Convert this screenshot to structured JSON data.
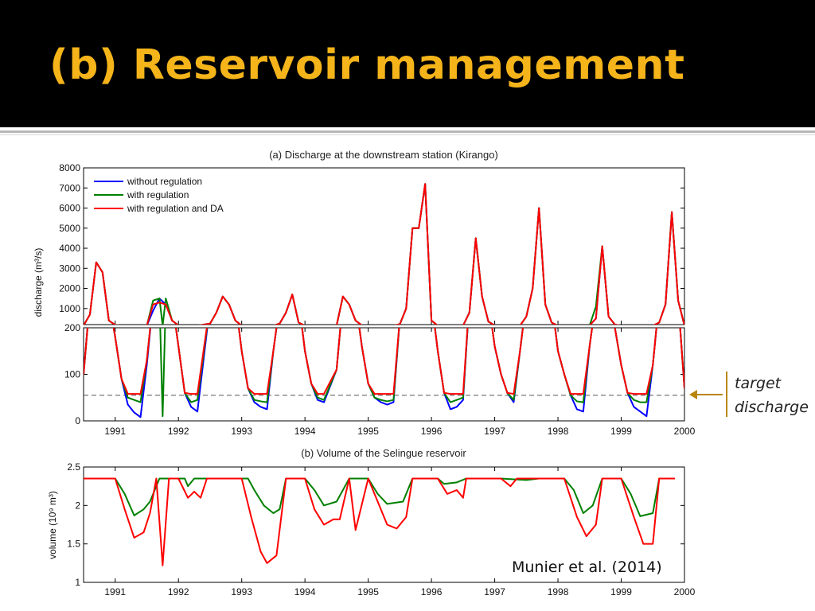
{
  "slide": {
    "title": "(b) Reservoir management",
    "annotation_line1": "target",
    "annotation_line2": "discharge",
    "citation": "Munier et al. (2014)"
  },
  "colors": {
    "title_bar": "#000000",
    "title_text": "#F4B41A",
    "without_regulation": "#0000FF",
    "with_regulation": "#008000",
    "with_regulation_da": "#FF0000",
    "arrow": "#B8860B"
  },
  "chart_data": [
    {
      "type": "line",
      "title": "(a) Discharge at the downstream station (Kirango)",
      "ylabel": "discharge (m³/s)",
      "panels": [
        {
          "ylim": [
            200,
            8000
          ],
          "yticks": [
            "8000",
            "7000",
            "6000",
            "5000",
            "4000",
            "3000",
            "2000",
            "1000"
          ]
        },
        {
          "ylim": [
            0,
            200
          ],
          "yticks": [
            "200",
            "100",
            "0"
          ]
        }
      ],
      "xlim": [
        1990.5,
        2000.0
      ],
      "xticks": [
        "1991",
        "1992",
        "1993",
        "1994",
        "1995",
        "1996",
        "1997",
        "1998",
        "1999",
        "2000"
      ],
      "target_discharge": 55,
      "legend": {
        "position": "top-left",
        "entries": [
          "without regulation",
          "with regulation",
          "with regulation and DA"
        ]
      },
      "series": [
        {
          "name": "without regulation",
          "color": "#0000FF",
          "x": [
            1990.5,
            1990.6,
            1990.7,
            1990.8,
            1990.9,
            1991.0,
            1991.1,
            1991.2,
            1991.3,
            1991.4,
            1991.5,
            1991.6,
            1991.7,
            1991.8,
            1991.9,
            1992.0,
            1992.1,
            1992.2,
            1992.3,
            1992.5,
            1992.6,
            1992.7,
            1992.8,
            1992.9,
            1993.0,
            1993.1,
            1993.2,
            1993.3,
            1993.4,
            1993.5,
            1993.6,
            1993.7,
            1993.8,
            1993.9,
            1994.0,
            1994.1,
            1994.2,
            1994.3,
            1994.5,
            1994.6,
            1994.7,
            1994.8,
            1994.9,
            1995.0,
            1995.1,
            1995.2,
            1995.3,
            1995.4,
            1995.5,
            1995.6,
            1995.7,
            1995.8,
            1995.9,
            1996.0,
            1996.1,
            1996.2,
            1996.3,
            1996.4,
            1996.5,
            1996.6,
            1996.7,
            1996.8,
            1996.9,
            1997.0,
            1997.1,
            1997.2,
            1997.3,
            1997.4,
            1997.5,
            1997.6,
            1997.7,
            1997.8,
            1997.9,
            1998.0,
            1998.1,
            1998.2,
            1998.3,
            1998.4,
            1998.5,
            1998.6,
            1998.7,
            1998.8,
            1998.9,
            1999.0,
            1999.1,
            1999.2,
            1999.3,
            1999.4,
            1999.5,
            1999.6,
            1999.7,
            1999.8,
            1999.9,
            2000.0
          ],
          "y": [
            100,
            700,
            3300,
            2800,
            400,
            180,
            90,
            35,
            18,
            8,
            120,
            900,
            1500,
            1200,
            400,
            160,
            60,
            30,
            20,
            250,
            800,
            1600,
            1200,
            400,
            150,
            70,
            40,
            30,
            25,
            150,
            250,
            800,
            1700,
            300,
            150,
            80,
            45,
            40,
            110,
            1600,
            1200,
            400,
            160,
            80,
            50,
            40,
            35,
            40,
            220,
            1000,
            5000,
            5000,
            7200,
            400,
            150,
            60,
            25,
            30,
            45,
            800,
            4500,
            1600,
            350,
            160,
            100,
            60,
            40,
            150,
            600,
            2000,
            6000,
            1200,
            300,
            150,
            100,
            55,
            25,
            20,
            160,
            500,
            4100,
            600,
            200,
            120,
            60,
            30,
            20,
            10,
            120,
            300,
            1200,
            5800,
            1400,
            70
          ]
        },
        {
          "name": "with regulation",
          "color": "#008000",
          "x": [
            1990.5,
            1990.6,
            1990.7,
            1990.8,
            1990.9,
            1991.0,
            1991.1,
            1991.2,
            1991.3,
            1991.4,
            1991.5,
            1991.6,
            1991.7,
            1991.75,
            1991.8,
            1991.9,
            1992.0,
            1992.1,
            1992.2,
            1992.3,
            1992.5,
            1992.6,
            1992.7,
            1992.8,
            1992.9,
            1993.0,
            1993.1,
            1993.2,
            1993.3,
            1993.4,
            1993.5,
            1993.6,
            1993.7,
            1993.8,
            1993.9,
            1994.0,
            1994.1,
            1994.2,
            1994.3,
            1994.5,
            1994.6,
            1994.7,
            1994.8,
            1994.9,
            1995.0,
            1995.1,
            1995.2,
            1995.3,
            1995.4,
            1995.5,
            1995.6,
            1995.7,
            1995.8,
            1995.9,
            1996.0,
            1996.1,
            1996.2,
            1996.3,
            1996.4,
            1996.5,
            1996.6,
            1996.7,
            1996.8,
            1996.9,
            1997.0,
            1997.1,
            1997.2,
            1997.3,
            1997.4,
            1997.5,
            1997.6,
            1997.7,
            1997.8,
            1997.9,
            1998.0,
            1998.1,
            1998.2,
            1998.3,
            1998.4,
            1998.5,
            1998.6,
            1998.7,
            1998.8,
            1998.9,
            1999.0,
            1999.1,
            1999.2,
            1999.3,
            1999.4,
            1999.5,
            1999.6,
            1999.7,
            1999.8,
            1999.9,
            2000.0
          ],
          "y": [
            100,
            700,
            3300,
            2800,
            400,
            180,
            90,
            50,
            45,
            40,
            130,
            1400,
            1500,
            10,
            1500,
            400,
            160,
            60,
            40,
            45,
            250,
            800,
            1600,
            1200,
            400,
            150,
            70,
            45,
            42,
            40,
            150,
            250,
            800,
            1700,
            300,
            150,
            80,
            50,
            45,
            110,
            1600,
            1200,
            400,
            160,
            80,
            50,
            45,
            42,
            45,
            220,
            1000,
            5000,
            5000,
            7200,
            400,
            150,
            60,
            40,
            45,
            50,
            800,
            4500,
            1600,
            350,
            160,
            100,
            60,
            45,
            150,
            600,
            2000,
            6000,
            1200,
            300,
            150,
            100,
            55,
            42,
            40,
            160,
            1100,
            4100,
            600,
            200,
            120,
            60,
            45,
            40,
            40,
            120,
            300,
            1200,
            5800,
            1400,
            70
          ]
        },
        {
          "name": "with regulation and DA",
          "color": "#FF0000",
          "x": [
            1990.5,
            1990.6,
            1990.7,
            1990.8,
            1990.9,
            1991.0,
            1991.1,
            1991.2,
            1991.3,
            1991.4,
            1991.5,
            1991.6,
            1991.7,
            1991.8,
            1991.9,
            1992.0,
            1992.1,
            1992.2,
            1992.3,
            1992.5,
            1992.6,
            1992.7,
            1992.8,
            1992.9,
            1993.0,
            1993.1,
            1993.2,
            1993.3,
            1993.4,
            1993.5,
            1993.6,
            1993.7,
            1993.8,
            1993.9,
            1994.0,
            1994.1,
            1994.2,
            1994.3,
            1994.5,
            1994.6,
            1994.7,
            1994.8,
            1994.9,
            1995.0,
            1995.1,
            1995.2,
            1995.3,
            1995.4,
            1995.5,
            1995.6,
            1995.7,
            1995.8,
            1995.9,
            1996.0,
            1996.1,
            1996.2,
            1996.3,
            1996.4,
            1996.5,
            1996.6,
            1996.7,
            1996.8,
            1996.9,
            1997.0,
            1997.1,
            1997.2,
            1997.3,
            1997.4,
            1997.5,
            1997.6,
            1997.7,
            1997.8,
            1997.9,
            1998.0,
            1998.1,
            1998.2,
            1998.3,
            1998.4,
            1998.5,
            1998.6,
            1998.7,
            1998.8,
            1998.9,
            1999.0,
            1999.1,
            1999.2,
            1999.3,
            1999.4,
            1999.5,
            1999.6,
            1999.7,
            1999.8,
            1999.9,
            2000.0
          ],
          "y": [
            100,
            700,
            3300,
            2800,
            400,
            180,
            90,
            58,
            58,
            58,
            130,
            1200,
            1300,
            1200,
            400,
            160,
            60,
            58,
            58,
            250,
            800,
            1600,
            1200,
            400,
            150,
            70,
            58,
            58,
            58,
            150,
            250,
            800,
            1700,
            300,
            150,
            80,
            58,
            58,
            110,
            1600,
            1200,
            400,
            160,
            80,
            58,
            58,
            58,
            58,
            220,
            1000,
            5000,
            5000,
            7200,
            400,
            150,
            60,
            58,
            58,
            58,
            800,
            4500,
            1600,
            350,
            160,
            100,
            60,
            58,
            150,
            600,
            2000,
            6000,
            1200,
            300,
            150,
            100,
            58,
            58,
            58,
            160,
            500,
            4100,
            600,
            200,
            120,
            60,
            58,
            58,
            58,
            120,
            300,
            1200,
            5800,
            1400,
            70
          ]
        }
      ]
    },
    {
      "type": "line",
      "title": "(b) Volume of the Selingue reservoir",
      "ylabel": "volume (10⁹ m³)",
      "ylim": [
        1,
        2.5
      ],
      "yticks": [
        "2.5",
        "2",
        "1.5",
        "1"
      ],
      "xlim": [
        1990.5,
        2000.0
      ],
      "xticks": [
        "1991",
        "1992",
        "1993",
        "1994",
        "1995",
        "1996",
        "1997",
        "1998",
        "1999",
        "2000"
      ],
      "series": [
        {
          "name": "with regulation",
          "color": "#008000",
          "x": [
            1990.5,
            1990.85,
            1991.0,
            1991.15,
            1991.3,
            1991.45,
            1991.55,
            1991.7,
            1992.1,
            1992.15,
            1992.25,
            1992.4,
            1993.0,
            1993.1,
            1993.2,
            1993.35,
            1993.5,
            1993.6,
            1993.7,
            1994.0,
            1994.15,
            1994.3,
            1994.5,
            1994.7,
            1995.0,
            1995.15,
            1995.3,
            1995.55,
            1995.7,
            1996.1,
            1996.2,
            1996.4,
            1996.55,
            1997.0,
            1997.1,
            1997.5,
            1997.7,
            1998.1,
            1998.25,
            1998.4,
            1998.55,
            1998.7,
            1999.0,
            1999.15,
            1999.3,
            1999.5,
            1999.6,
            1999.85
          ],
          "y": [
            2.35,
            2.35,
            2.35,
            2.15,
            1.87,
            1.95,
            2.05,
            2.35,
            2.35,
            2.25,
            2.35,
            2.35,
            2.35,
            2.35,
            2.2,
            2.0,
            1.9,
            1.95,
            2.35,
            2.35,
            2.2,
            2.0,
            2.05,
            2.35,
            2.35,
            2.15,
            2.02,
            2.05,
            2.35,
            2.35,
            2.28,
            2.3,
            2.35,
            2.35,
            2.35,
            2.33,
            2.35,
            2.35,
            2.2,
            1.9,
            2.0,
            2.35,
            2.35,
            2.15,
            1.86,
            1.9,
            2.35,
            2.35
          ]
        },
        {
          "name": "with regulation and DA",
          "color": "#FF0000",
          "x": [
            1990.5,
            1990.85,
            1991.0,
            1991.15,
            1991.3,
            1991.45,
            1991.55,
            1991.65,
            1991.75,
            1991.85,
            1992.0,
            1992.15,
            1992.25,
            1992.35,
            1992.45,
            1993.0,
            1993.15,
            1993.3,
            1993.4,
            1993.55,
            1993.7,
            1994.0,
            1994.15,
            1994.3,
            1994.45,
            1994.55,
            1994.7,
            1994.8,
            1995.0,
            1995.15,
            1995.3,
            1995.45,
            1995.6,
            1995.7,
            1996.1,
            1996.25,
            1996.4,
            1996.5,
            1996.55,
            1997.0,
            1997.1,
            1997.25,
            1997.35,
            1997.7,
            1998.1,
            1998.3,
            1998.45,
            1998.6,
            1998.7,
            1999.0,
            1999.2,
            1999.35,
            1999.5,
            1999.6,
            1999.85
          ],
          "y": [
            2.35,
            2.35,
            2.35,
            1.95,
            1.58,
            1.65,
            1.9,
            2.35,
            1.22,
            2.35,
            2.35,
            2.1,
            2.18,
            2.1,
            2.35,
            2.35,
            1.85,
            1.4,
            1.25,
            1.35,
            2.35,
            2.35,
            1.95,
            1.75,
            1.82,
            1.82,
            2.35,
            1.68,
            2.35,
            2.05,
            1.75,
            1.7,
            1.85,
            2.35,
            2.35,
            2.15,
            2.2,
            2.1,
            2.35,
            2.35,
            2.35,
            2.25,
            2.35,
            2.35,
            2.35,
            1.85,
            1.6,
            1.75,
            2.35,
            2.35,
            1.85,
            1.5,
            1.5,
            2.35,
            2.35
          ]
        }
      ]
    }
  ]
}
